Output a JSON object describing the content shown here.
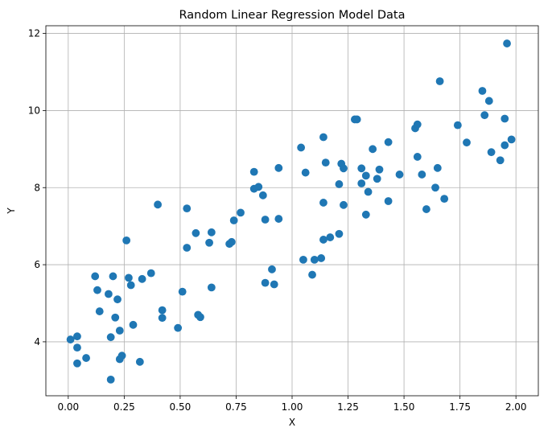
{
  "chart_data": {
    "type": "scatter",
    "title": "Random Linear Regression Model Data",
    "xlabel": "X",
    "ylabel": "Y",
    "xlim": [
      -0.1,
      2.1
    ],
    "ylim": [
      2.6,
      12.2
    ],
    "grid": true,
    "x_ticks": [
      "0.00",
      "0.25",
      "0.50",
      "0.75",
      "1.00",
      "1.25",
      "1.50",
      "1.75",
      "2.00"
    ],
    "x_tick_values": [
      0,
      0.25,
      0.5,
      0.75,
      1.0,
      1.25,
      1.5,
      1.75,
      2.0
    ],
    "y_ticks": [
      "4",
      "6",
      "8",
      "10",
      "12"
    ],
    "y_tick_values": [
      4,
      6,
      8,
      10,
      12
    ],
    "marker_color": "#1f77b4",
    "points": [
      [
        0.01,
        4.06
      ],
      [
        0.04,
        4.14
      ],
      [
        0.04,
        3.85
      ],
      [
        0.04,
        3.44
      ],
      [
        0.08,
        3.58
      ],
      [
        0.12,
        5.7
      ],
      [
        0.13,
        5.34
      ],
      [
        0.14,
        4.79
      ],
      [
        0.18,
        5.24
      ],
      [
        0.19,
        3.02
      ],
      [
        0.19,
        4.12
      ],
      [
        0.2,
        5.7
      ],
      [
        0.21,
        4.63
      ],
      [
        0.22,
        5.1
      ],
      [
        0.23,
        4.29
      ],
      [
        0.23,
        3.55
      ],
      [
        0.24,
        3.64
      ],
      [
        0.26,
        6.63
      ],
      [
        0.27,
        5.66
      ],
      [
        0.28,
        5.47
      ],
      [
        0.29,
        4.44
      ],
      [
        0.32,
        3.48
      ],
      [
        0.33,
        5.63
      ],
      [
        0.37,
        5.78
      ],
      [
        0.4,
        7.56
      ],
      [
        0.42,
        4.62
      ],
      [
        0.42,
        4.82
      ],
      [
        0.49,
        4.36
      ],
      [
        0.51,
        5.3
      ],
      [
        0.53,
        7.46
      ],
      [
        0.53,
        6.44
      ],
      [
        0.57,
        6.82
      ],
      [
        0.58,
        4.7
      ],
      [
        0.59,
        4.64
      ],
      [
        0.63,
        6.57
      ],
      [
        0.64,
        6.84
      ],
      [
        0.64,
        5.41
      ],
      [
        0.72,
        6.54
      ],
      [
        0.73,
        6.59
      ],
      [
        0.74,
        7.15
      ],
      [
        0.77,
        7.35
      ],
      [
        0.83,
        8.41
      ],
      [
        0.83,
        7.97
      ],
      [
        0.85,
        8.02
      ],
      [
        0.87,
        7.8
      ],
      [
        0.88,
        7.17
      ],
      [
        0.88,
        5.53
      ],
      [
        0.91,
        5.88
      ],
      [
        0.92,
        5.49
      ],
      [
        0.94,
        8.51
      ],
      [
        0.94,
        7.19
      ],
      [
        1.04,
        9.04
      ],
      [
        1.05,
        6.13
      ],
      [
        1.06,
        8.39
      ],
      [
        1.09,
        5.74
      ],
      [
        1.1,
        6.13
      ],
      [
        1.13,
        6.17
      ],
      [
        1.14,
        9.31
      ],
      [
        1.14,
        6.65
      ],
      [
        1.14,
        7.61
      ],
      [
        1.15,
        8.65
      ],
      [
        1.17,
        6.71
      ],
      [
        1.21,
        8.09
      ],
      [
        1.21,
        6.8
      ],
      [
        1.22,
        8.62
      ],
      [
        1.23,
        8.5
      ],
      [
        1.23,
        7.55
      ],
      [
        1.28,
        9.77
      ],
      [
        1.29,
        9.77
      ],
      [
        1.31,
        8.5
      ],
      [
        1.31,
        8.11
      ],
      [
        1.33,
        7.3
      ],
      [
        1.33,
        8.31
      ],
      [
        1.34,
        7.89
      ],
      [
        1.36,
        9.0
      ],
      [
        1.38,
        8.23
      ],
      [
        1.39,
        8.47
      ],
      [
        1.43,
        9.18
      ],
      [
        1.43,
        7.65
      ],
      [
        1.48,
        8.34
      ],
      [
        1.55,
        9.54
      ],
      [
        1.56,
        9.64
      ],
      [
        1.56,
        8.8
      ],
      [
        1.58,
        8.34
      ],
      [
        1.6,
        7.44
      ],
      [
        1.64,
        8.0
      ],
      [
        1.65,
        8.51
      ],
      [
        1.66,
        10.76
      ],
      [
        1.68,
        7.71
      ],
      [
        1.74,
        9.62
      ],
      [
        1.78,
        9.17
      ],
      [
        1.85,
        10.51
      ],
      [
        1.86,
        9.88
      ],
      [
        1.88,
        10.25
      ],
      [
        1.89,
        8.92
      ],
      [
        1.93,
        8.71
      ],
      [
        1.95,
        9.79
      ],
      [
        1.95,
        9.1
      ],
      [
        1.96,
        11.74
      ],
      [
        1.98,
        9.25
      ]
    ]
  }
}
